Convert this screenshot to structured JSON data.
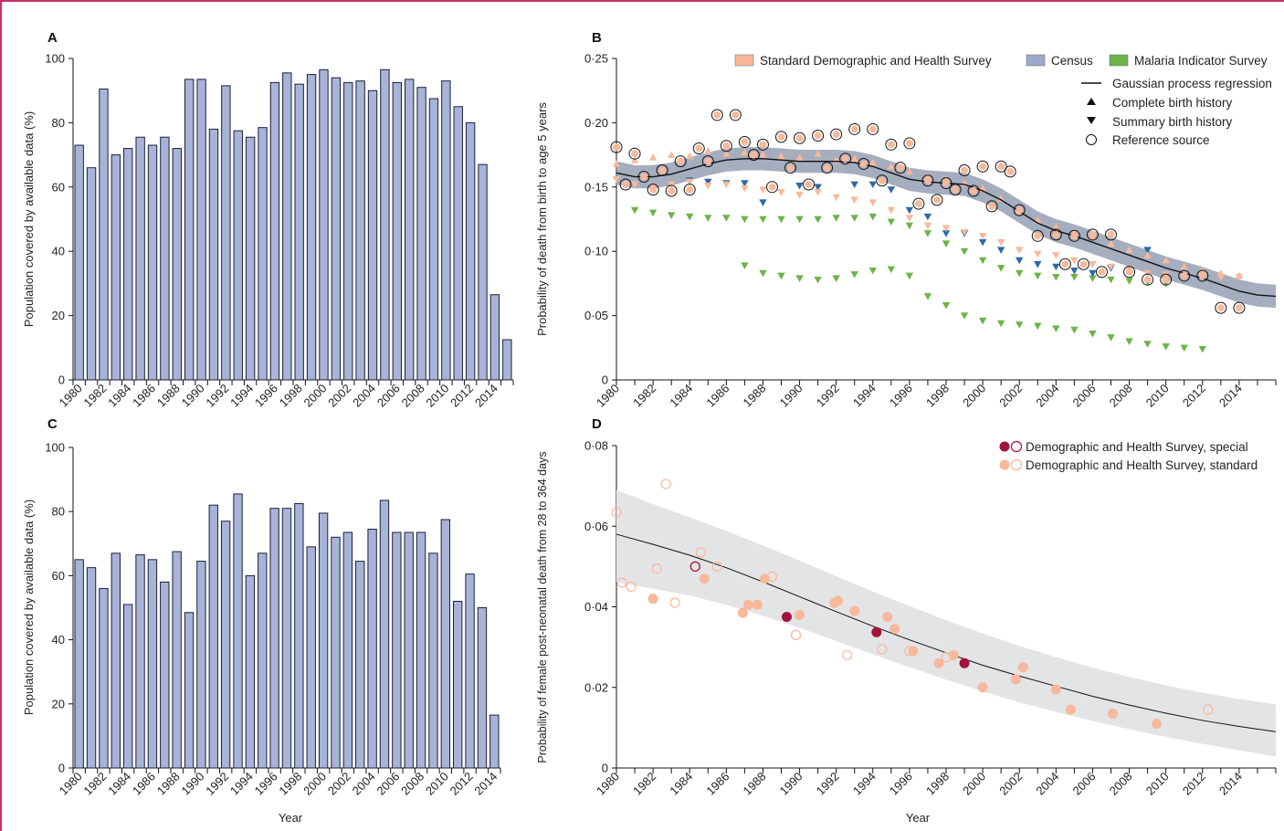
{
  "colors": {
    "bar_fill": "#a7b4d8",
    "bar_stroke": "#1b1f3a",
    "frame": "#c8306a",
    "dhs_standard": "#f8b89a",
    "census": "#9aa9cc",
    "malaria": "#6bb446",
    "census_dark": "#2b6aa8",
    "gpr_band": "#8e9aaf",
    "special": "#a3123a",
    "band_d": "#e3e4e6"
  },
  "chart_data": [
    {
      "panel": "A",
      "type": "bar",
      "ylabel": "Population covered by available data (%)",
      "ylim": [
        0,
        100
      ],
      "yticks": [
        "0",
        "20",
        "40",
        "60",
        "80",
        "100"
      ],
      "categories": [
        1980,
        1981,
        1982,
        1983,
        1984,
        1985,
        1986,
        1987,
        1988,
        1989,
        1990,
        1991,
        1992,
        1993,
        1994,
        1995,
        1996,
        1997,
        1998,
        1999,
        2000,
        2001,
        2002,
        2003,
        2004,
        2005,
        2006,
        2007,
        2008,
        2009,
        2010,
        2011,
        2012,
        2013,
        2014,
        2015
      ],
      "xtick_labels": [
        "1980",
        "1982",
        "1984",
        "1986",
        "1988",
        "1990",
        "1992",
        "1994",
        "1996",
        "1998",
        "2000",
        "2002",
        "2004",
        "2006",
        "2008",
        "2010",
        "2012",
        "2014"
      ],
      "values": [
        73,
        66,
        90.5,
        70,
        72,
        75.5,
        73,
        75.5,
        72,
        93.5,
        93.5,
        78,
        91.5,
        77.5,
        75.5,
        78.5,
        92.5,
        95.5,
        92,
        95,
        96.5,
        94,
        92.5,
        93,
        90,
        96.5,
        92.5,
        93.5,
        91,
        87.5,
        93,
        85,
        80,
        67,
        26.5,
        12.5
      ]
    },
    {
      "panel": "C",
      "type": "bar",
      "xlabel": "Year",
      "ylabel": "Population covered by available data (%)",
      "ylim": [
        0,
        100
      ],
      "yticks": [
        "0",
        "20",
        "40",
        "60",
        "80",
        "100"
      ],
      "categories": [
        1980,
        1981,
        1982,
        1983,
        1984,
        1985,
        1986,
        1987,
        1988,
        1989,
        1990,
        1991,
        1992,
        1993,
        1994,
        1995,
        1996,
        1997,
        1998,
        1999,
        2000,
        2001,
        2002,
        2003,
        2004,
        2005,
        2006,
        2007,
        2008,
        2009,
        2010,
        2011,
        2012,
        2013,
        2014
      ],
      "xtick_labels": [
        "1980",
        "1982",
        "1984",
        "1986",
        "1988",
        "1990",
        "1992",
        "1994",
        "1996",
        "1998",
        "2000",
        "2002",
        "2004",
        "2006",
        "2008",
        "2010",
        "2012",
        "2014"
      ],
      "values": [
        65,
        62.5,
        56,
        67,
        51,
        66.5,
        65,
        58,
        67.5,
        48.5,
        64.5,
        82,
        77,
        85.5,
        60,
        67,
        81,
        81,
        82.5,
        69,
        79.5,
        72,
        73.5,
        64.5,
        74.5,
        83.5,
        73.5,
        73.5,
        73.5,
        67,
        77.5,
        52,
        60.5,
        50,
        16.5
      ]
    },
    {
      "panel": "B",
      "type": "scatter",
      "ylabel": "Probability of death from birth to age 5 years",
      "ylim": [
        0,
        0.25
      ],
      "xlim": [
        1980,
        2016
      ],
      "yticks": [
        "0",
        "0·05",
        "0·10",
        "0·15",
        "0·20",
        "0·25"
      ],
      "xtick_labels": [
        "1980",
        "1982",
        "1984",
        "1986",
        "1988",
        "1990",
        "1992",
        "1994",
        "1996",
        "1998",
        "2000",
        "2002",
        "2004",
        "2006",
        "2008",
        "2010",
        "2012",
        "2014"
      ],
      "legend_top": [
        "Standard Demographic and Health Survey",
        "Census",
        "Malaria Indicator Survey"
      ],
      "legend_right": [
        "Gaussian process regression",
        "Complete birth history",
        "Summary birth history",
        "Reference source"
      ],
      "gpr": {
        "x": [
          1980,
          1981,
          1982,
          1983,
          1984,
          1985,
          1986,
          1987,
          1988,
          1989,
          1990,
          1991,
          1992,
          1993,
          1994,
          1995,
          1996,
          1997,
          1998,
          1999,
          2000,
          2001,
          2002,
          2003,
          2004,
          2005,
          2006,
          2007,
          2008,
          2009,
          2010,
          2011,
          2012,
          2013,
          2014,
          2015,
          2016
        ],
        "y": [
          0.161,
          0.158,
          0.158,
          0.16,
          0.164,
          0.168,
          0.171,
          0.172,
          0.172,
          0.171,
          0.17,
          0.17,
          0.17,
          0.169,
          0.166,
          0.161,
          0.156,
          0.154,
          0.153,
          0.152,
          0.147,
          0.14,
          0.131,
          0.122,
          0.116,
          0.112,
          0.107,
          0.102,
          0.097,
          0.092,
          0.087,
          0.083,
          0.079,
          0.074,
          0.069,
          0.066,
          0.065
        ]
      },
      "reference_source": {
        "x": [
          1980,
          1980.5,
          1981,
          1981.5,
          1982,
          1982.5,
          1983,
          1983.5,
          1984,
          1984.5,
          1985,
          1985.5,
          1986,
          1986.5,
          1987,
          1987.5,
          1988,
          1988.5,
          1989,
          1989.5,
          1990,
          1990.5,
          1991,
          1991.5,
          1992,
          1992.5,
          1993,
          1993.5,
          1994,
          1994.5,
          1995,
          1995.5,
          1996,
          1996.5,
          1997,
          1997.5,
          1998,
          1998.5,
          1999,
          1999.5,
          2000,
          2000.5,
          2001,
          2001.5,
          2002,
          2003,
          2004,
          2004.5,
          2005,
          2005.5,
          2006,
          2006.5,
          2007,
          2008,
          2009,
          2010,
          2011,
          2012,
          2013,
          2014
        ],
        "y": [
          0.181,
          0.152,
          0.176,
          0.158,
          0.148,
          0.163,
          0.147,
          0.17,
          0.148,
          0.18,
          0.17,
          0.206,
          0.182,
          0.206,
          0.185,
          0.175,
          0.183,
          0.15,
          0.189,
          0.165,
          0.188,
          0.152,
          0.19,
          0.165,
          0.191,
          0.172,
          0.195,
          0.168,
          0.195,
          0.155,
          0.183,
          0.165,
          0.184,
          0.137,
          0.155,
          0.14,
          0.153,
          0.148,
          0.163,
          0.147,
          0.166,
          0.135,
          0.166,
          0.162,
          0.132,
          0.112,
          0.113,
          0.09,
          0.112,
          0.09,
          0.113,
          0.084,
          0.113,
          0.084,
          0.078,
          0.078,
          0.081,
          0.081,
          0.056,
          0.056
        ]
      },
      "complete_birth_history": {
        "x": [
          1980,
          1981,
          1982,
          1983,
          1984,
          1985,
          1986,
          1987,
          1988,
          1989,
          1990,
          1991,
          1992,
          1993,
          1994,
          1995,
          1996,
          1997,
          1998,
          1999,
          2000,
          2001,
          2002,
          2003,
          2004,
          2005,
          2006,
          2007,
          2008,
          2009,
          2010,
          2011,
          2012,
          2013,
          2014
        ],
        "y": [
          0.168,
          0.171,
          0.173,
          0.175,
          0.174,
          0.178,
          0.176,
          0.177,
          0.175,
          0.174,
          0.173,
          0.176,
          0.171,
          0.172,
          0.169,
          0.166,
          0.162,
          0.158,
          0.156,
          0.153,
          0.149,
          0.141,
          0.131,
          0.124,
          0.119,
          0.115,
          0.111,
          0.106,
          0.101,
          0.097,
          0.093,
          0.088,
          0.085,
          0.083,
          0.081
        ]
      },
      "summary_birth_history": {
        "x": [
          1980,
          1981,
          1982,
          1983,
          1984,
          1985,
          1986,
          1987,
          1988,
          1989,
          1990,
          1991,
          1992,
          1993,
          1994,
          1995,
          1996,
          1997,
          1998,
          1999,
          2000,
          2001,
          2002,
          2003,
          2004,
          2005,
          2006,
          2007,
          2008,
          2009,
          2010,
          2011,
          2012,
          2013,
          2014
        ],
        "y": [
          0.156,
          0.152,
          0.15,
          0.152,
          0.154,
          0.151,
          0.152,
          0.149,
          0.148,
          0.146,
          0.144,
          0.146,
          0.142,
          0.14,
          0.138,
          0.132,
          0.126,
          0.12,
          0.118,
          0.115,
          0.112,
          0.107,
          0.101,
          0.098,
          0.097,
          0.093,
          0.09,
          0.088,
          0.086,
          0.083,
          0.082,
          0.081,
          0.081,
          0.08,
          0.08
        ]
      },
      "census_summary": {
        "x": [
          1984,
          1985,
          1986,
          1987,
          1988,
          1990,
          1991,
          1993,
          1994,
          1995,
          1996,
          1997,
          1998,
          1999,
          2000,
          2001,
          2002,
          2003,
          2004,
          2005,
          2006,
          2007,
          2009
        ],
        "y": [
          0.155,
          0.154,
          0.153,
          0.153,
          0.138,
          0.151,
          0.15,
          0.152,
          0.152,
          0.148,
          0.132,
          0.127,
          0.114,
          0.114,
          0.107,
          0.101,
          0.093,
          0.09,
          0.088,
          0.085,
          0.083,
          0.087,
          0.101
        ]
      },
      "malaria_summary": {
        "x": [
          1981,
          1982,
          1983,
          1984,
          1985,
          1986,
          1987,
          1988,
          1989,
          1990,
          1991,
          1992,
          1993,
          1994,
          1995,
          1996,
          1997,
          1998,
          1999,
          2000,
          2001,
          2002,
          2003,
          2004,
          2005,
          2006,
          2007,
          2008,
          2009,
          2010
        ],
        "y": [
          0.132,
          0.13,
          0.128,
          0.127,
          0.126,
          0.126,
          0.125,
          0.125,
          0.125,
          0.125,
          0.125,
          0.126,
          0.126,
          0.127,
          0.123,
          0.12,
          0.114,
          0.106,
          0.1,
          0.093,
          0.087,
          0.083,
          0.081,
          0.08,
          0.08,
          0.079,
          0.078,
          0.077,
          0.076,
          0.075
        ]
      },
      "malaria_low": {
        "x": [
          1987,
          1988,
          1989,
          1990,
          1991,
          1992,
          1993,
          1994,
          1995,
          1996,
          1997,
          1998,
          1999,
          2000,
          2001,
          2002,
          2003,
          2004,
          2005,
          2006,
          2007,
          2008,
          2009,
          2010,
          2011,
          2012
        ],
        "y": [
          0.089,
          0.083,
          0.081,
          0.079,
          0.078,
          0.079,
          0.082,
          0.085,
          0.086,
          0.081,
          0.065,
          0.058,
          0.05,
          0.046,
          0.044,
          0.043,
          0.042,
          0.04,
          0.039,
          0.036,
          0.033,
          0.03,
          0.028,
          0.026,
          0.025,
          0.024
        ]
      }
    },
    {
      "panel": "D",
      "type": "scatter",
      "xlabel": "Year",
      "ylabel": "Probability of female post-neonatal death from 28 to 364 days",
      "ylim": [
        0,
        0.08
      ],
      "xlim": [
        1980,
        2016
      ],
      "yticks": [
        "0",
        "0·02",
        "0·04",
        "0·06",
        "0·08"
      ],
      "xtick_labels": [
        "1980",
        "1982",
        "1984",
        "1986",
        "1988",
        "1990",
        "1992",
        "1994",
        "1996",
        "1998",
        "2000",
        "2002",
        "2004",
        "2006",
        "2008",
        "2010",
        "2012",
        "2014"
      ],
      "legend": [
        "Demographic and Health Survey, special",
        "Demographic and Health Survey, standard"
      ],
      "curve": {
        "x": [
          1980,
          1982,
          1984,
          1986,
          1988,
          1990,
          1992,
          1994,
          1996,
          1998,
          2000,
          2002,
          2004,
          2006,
          2008,
          2010,
          2012,
          2014,
          2016
        ],
        "y": [
          0.058,
          0.0555,
          0.0528,
          0.0497,
          0.0462,
          0.0425,
          0.0388,
          0.0352,
          0.0318,
          0.0286,
          0.0255,
          0.0228,
          0.0203,
          0.0178,
          0.0156,
          0.0136,
          0.0118,
          0.0103,
          0.009
        ]
      },
      "band_upper": [
        0.069,
        0.0655,
        0.0622,
        0.0588,
        0.0552,
        0.0515,
        0.0476,
        0.0438,
        0.0402,
        0.0367,
        0.0334,
        0.0303,
        0.0275,
        0.0249,
        0.0226,
        0.0205,
        0.0187,
        0.0171,
        0.0158
      ],
      "band_lower": [
        0.046,
        0.0445,
        0.0428,
        0.0405,
        0.0378,
        0.0348,
        0.0315,
        0.0282,
        0.025,
        0.0219,
        0.019,
        0.0163,
        0.0139,
        0.0117,
        0.0096,
        0.0077,
        0.006,
        0.0044,
        0.0028
      ],
      "special_filled": {
        "x": [
          1989.3,
          1994.2,
          1999
        ],
        "y": [
          0.0375,
          0.0337,
          0.026
        ]
      },
      "special_open": {
        "x": [
          1984.3
        ],
        "y": [
          0.05
        ]
      },
      "standard_filled": {
        "x": [
          1982,
          1984.8,
          1986.9,
          1987.2,
          1987.7,
          1988.1,
          1990,
          1991.9,
          1992.1,
          1993,
          1994.8,
          1995.2,
          1996.2,
          1997.6,
          1998.4,
          2000,
          2001.8,
          2002.2,
          2004,
          2004.8,
          2007.1,
          2009.5
        ],
        "y": [
          0.042,
          0.047,
          0.0385,
          0.0405,
          0.0405,
          0.047,
          0.038,
          0.041,
          0.0415,
          0.039,
          0.0375,
          0.0345,
          0.029,
          0.026,
          0.028,
          0.02,
          0.022,
          0.025,
          0.0195,
          0.0145,
          0.0135,
          0.011
        ]
      },
      "standard_open": {
        "x": [
          1980,
          1980.3,
          1980.8,
          1982.2,
          1982.7,
          1983.2,
          1984.6,
          1985.5,
          1988.5,
          1989.8,
          1992.6,
          1994.5,
          1996,
          1998,
          2012.3
        ],
        "y": [
          0.0635,
          0.046,
          0.045,
          0.0495,
          0.0705,
          0.041,
          0.0535,
          0.05,
          0.0475,
          0.033,
          0.028,
          0.0295,
          0.029,
          0.0275,
          0.0145
        ]
      }
    }
  ]
}
